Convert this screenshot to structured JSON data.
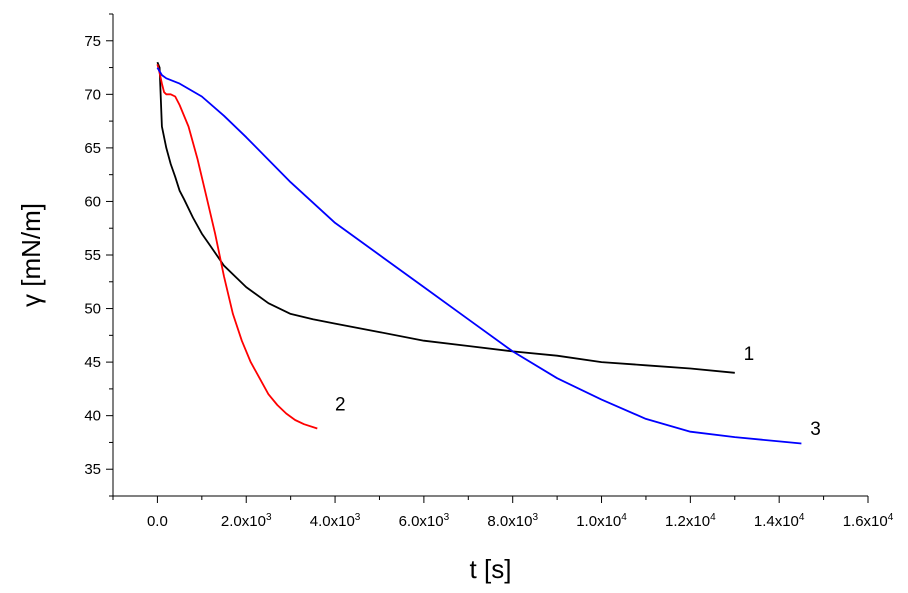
{
  "chart_data": {
    "type": "line",
    "xlabel": "t [s]",
    "ylabel": "γ [mN/m]",
    "xlim": [
      -1000,
      16000
    ],
    "ylim": [
      32.5,
      77.5
    ],
    "x_ticks": [
      {
        "value": 0,
        "label": "0.0",
        "exp": ""
      },
      {
        "value": 2000,
        "label": "2.0x10",
        "exp": "3"
      },
      {
        "value": 4000,
        "label": "4.0x10",
        "exp": "3"
      },
      {
        "value": 6000,
        "label": "6.0x10",
        "exp": "3"
      },
      {
        "value": 8000,
        "label": "8.0x10",
        "exp": "3"
      },
      {
        "value": 10000,
        "label": "1.0x10",
        "exp": "4"
      },
      {
        "value": 12000,
        "label": "1.2x10",
        "exp": "4"
      },
      {
        "value": 14000,
        "label": "1.4x10",
        "exp": "4"
      },
      {
        "value": 16000,
        "label": "1.6x10",
        "exp": "4"
      }
    ],
    "y_ticks": [
      {
        "value": 35,
        "label": "35"
      },
      {
        "value": 40,
        "label": "40"
      },
      {
        "value": 45,
        "label": "45"
      },
      {
        "value": 50,
        "label": "50"
      },
      {
        "value": 55,
        "label": "55"
      },
      {
        "value": 60,
        "label": "60"
      },
      {
        "value": 65,
        "label": "65"
      },
      {
        "value": 70,
        "label": "70"
      },
      {
        "value": 75,
        "label": "75"
      }
    ],
    "grid": false,
    "series": [
      {
        "name": "1",
        "color": "#000000",
        "label_at": [
          13200,
          45.2
        ],
        "x": [
          0,
          50,
          100,
          200,
          300,
          400,
          500,
          600,
          800,
          1000,
          1200,
          1500,
          1800,
          2000,
          2500,
          3000,
          3500,
          4000,
          5000,
          6000,
          7000,
          8000,
          9000,
          10000,
          11000,
          12000,
          13000
        ],
        "y": [
          73.0,
          72.5,
          67.0,
          65.0,
          63.5,
          62.3,
          61.0,
          60.2,
          58.5,
          57.0,
          55.8,
          54.0,
          52.8,
          52.0,
          50.5,
          49.5,
          49.0,
          48.6,
          47.8,
          47.0,
          46.5,
          46.0,
          45.6,
          45.0,
          44.7,
          44.4,
          44.0
        ]
      },
      {
        "name": "2",
        "color": "#ff0000",
        "label_at": [
          4000,
          40.5
        ],
        "x": [
          0,
          50,
          100,
          150,
          200,
          300,
          400,
          500,
          700,
          900,
          1100,
          1300,
          1500,
          1700,
          1900,
          2100,
          2300,
          2500,
          2700,
          2900,
          3100,
          3300,
          3600
        ],
        "y": [
          72.8,
          72.0,
          71.0,
          70.2,
          70.0,
          70.0,
          69.8,
          69.0,
          67.0,
          64.0,
          60.5,
          57.0,
          53.0,
          49.5,
          47.0,
          45.0,
          43.5,
          42.0,
          41.0,
          40.2,
          39.6,
          39.2,
          38.8
        ]
      },
      {
        "name": "3",
        "color": "#0000ff",
        "label_at": [
          14700,
          38.2
        ],
        "x": [
          0,
          100,
          200,
          500,
          1000,
          1500,
          2000,
          3000,
          4000,
          5000,
          6000,
          7000,
          8000,
          9000,
          10000,
          11000,
          12000,
          13000,
          14000,
          14500
        ],
        "y": [
          72.5,
          71.8,
          71.5,
          71.0,
          69.8,
          68.0,
          66.0,
          61.8,
          58.0,
          55.0,
          52.0,
          49.0,
          46.0,
          43.5,
          41.5,
          39.7,
          38.5,
          38.0,
          37.6,
          37.4
        ]
      }
    ]
  }
}
